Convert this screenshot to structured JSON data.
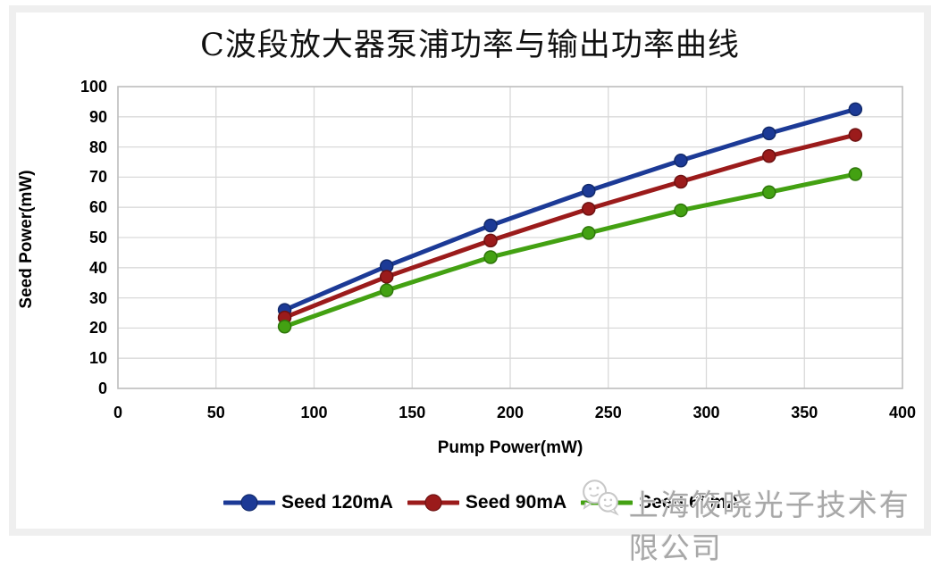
{
  "title": "C波段放大器泵浦功率与输出功率曲线",
  "watermark": {
    "text": "上海筱晓光子技术有限公司",
    "icon": "wechat-chat-bubbles-icon"
  },
  "colors": {
    "gridline": "#d9d9d9",
    "plot_border": "#bfbfbf",
    "frame": "#efefef",
    "text": "#000000"
  },
  "chart_data": {
    "type": "line",
    "title": "C波段放大器泵浦功率与输出功率曲线",
    "xlabel": "Pump Power(mW)",
    "ylabel": "Seed Power(mW)",
    "xlim": [
      0,
      400
    ],
    "ylim": [
      0,
      100
    ],
    "x_ticks": [
      0,
      50,
      100,
      150,
      200,
      250,
      300,
      350,
      400
    ],
    "y_ticks": [
      0,
      10,
      20,
      30,
      40,
      50,
      60,
      70,
      80,
      90,
      100
    ],
    "grid": true,
    "legend_position": "bottom",
    "x": [
      85,
      137,
      190,
      240,
      287,
      332,
      376
    ],
    "series": [
      {
        "name": "Seed 120mA",
        "color": "#1c3a96",
        "edge": "#122a6b",
        "values": [
          26,
          40.5,
          54,
          65.5,
          75.5,
          84.5,
          92.5
        ]
      },
      {
        "name": "Seed 90mA",
        "color": "#9b1b1b",
        "edge": "#6e1212",
        "values": [
          23.5,
          37,
          49,
          59.5,
          68.5,
          77,
          84
        ]
      },
      {
        "name": "Seed 60mA",
        "color": "#43a112",
        "edge": "#2e760a",
        "values": [
          20.5,
          32.5,
          43.5,
          51.5,
          59,
          65,
          71
        ]
      }
    ]
  }
}
